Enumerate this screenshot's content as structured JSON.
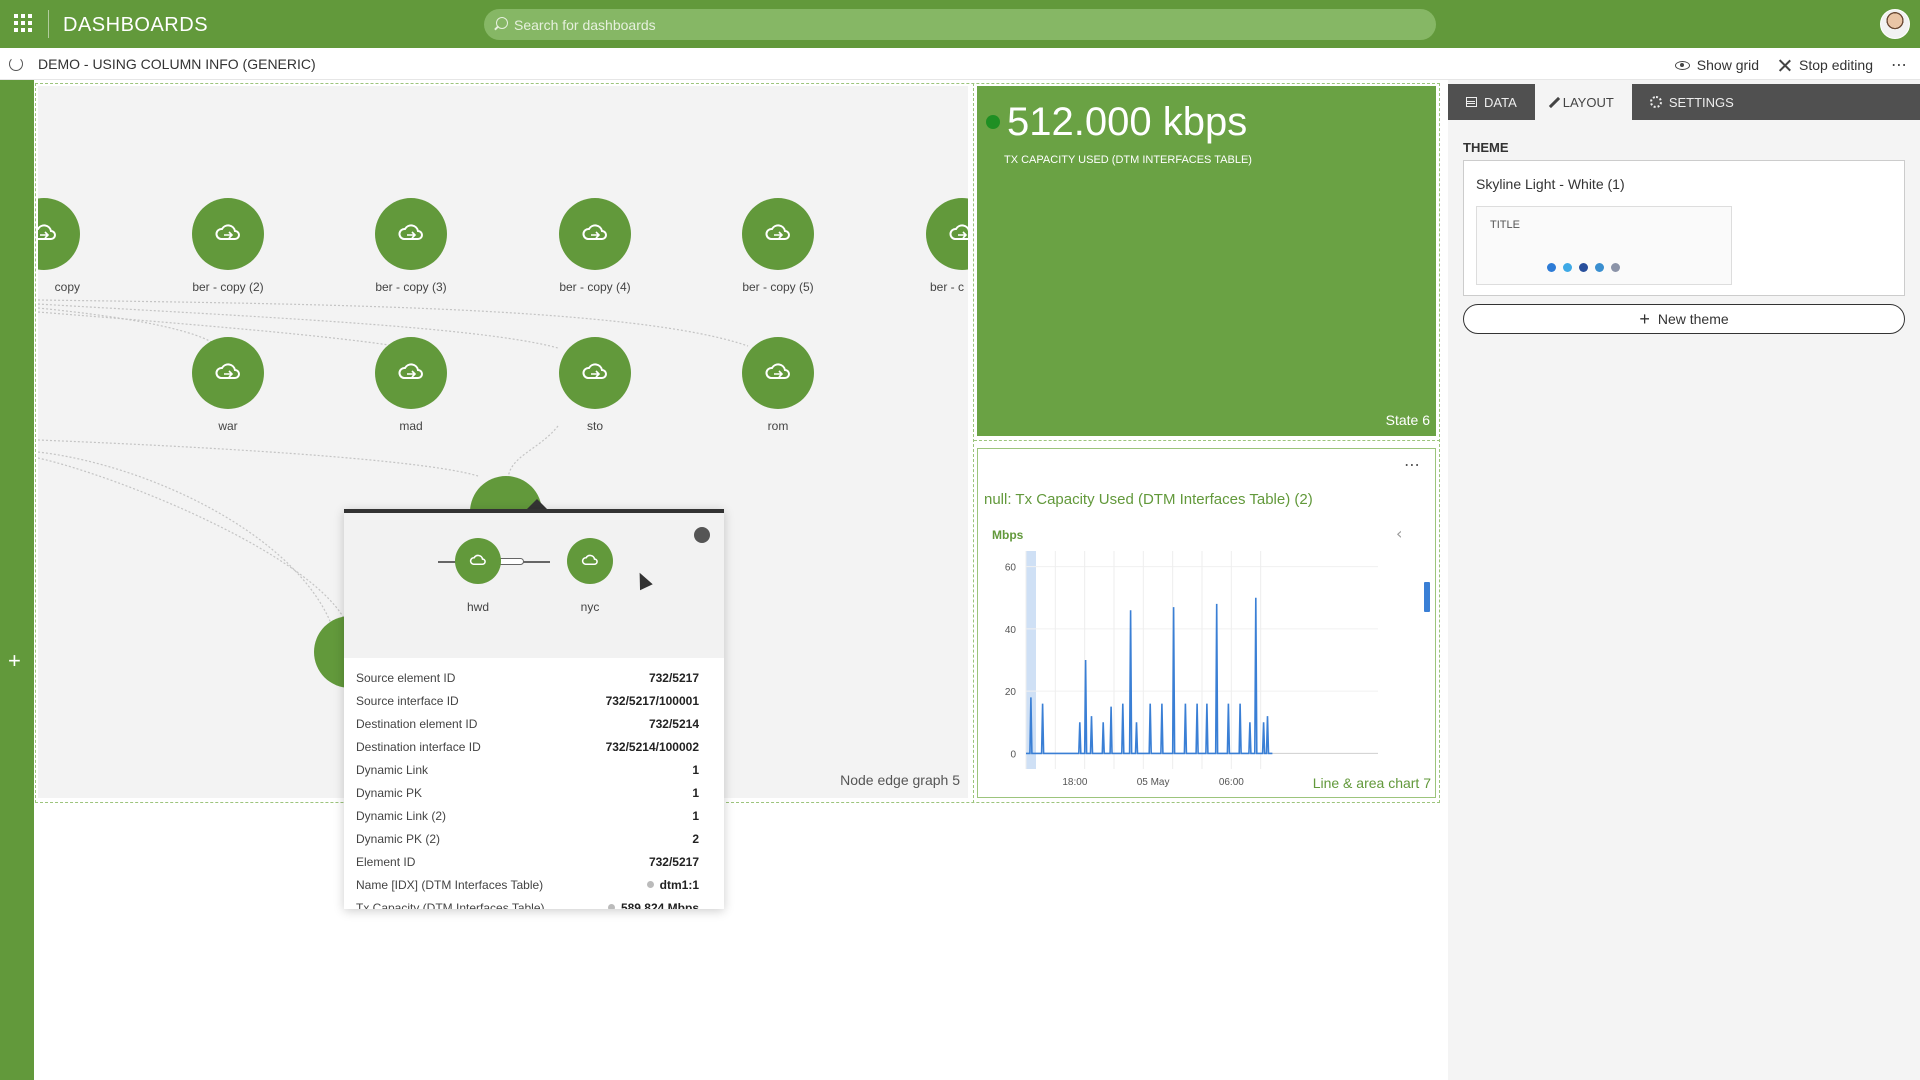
{
  "topbar": {
    "title": "DASHBOARDS",
    "search_placeholder": "Search for dashboards"
  },
  "subbar": {
    "dashboard_title": "DEMO - USING COLUMN INFO (GENERIC)",
    "show_grid": "Show grid",
    "stop_editing": "Stop editing"
  },
  "graph": {
    "panel_label": "Node edge graph 5",
    "nodes": {
      "copy": "copy",
      "ber_copy_2": "ber - copy (2)",
      "ber_copy_3": "ber - copy (3)",
      "ber_copy_4": "ber - copy (4)",
      "ber_copy_5": "ber - copy (5)",
      "ber_c": "ber - c",
      "war": "war",
      "mad": "mad",
      "sto": "sto",
      "rom": "rom"
    },
    "popup": {
      "source_node": "hwd",
      "dest_node": "nyc",
      "properties": [
        {
          "label": "Source element ID",
          "value": "732/5217"
        },
        {
          "label": "Source interface ID",
          "value": "732/5217/100001"
        },
        {
          "label": "Destination element ID",
          "value": "732/5214"
        },
        {
          "label": "Destination interface ID",
          "value": "732/5214/100002"
        },
        {
          "label": "Dynamic Link",
          "value": "1"
        },
        {
          "label": "Dynamic PK",
          "value": "1"
        },
        {
          "label": "Dynamic Link (2)",
          "value": "1"
        },
        {
          "label": "Dynamic PK (2)",
          "value": "2"
        },
        {
          "label": "Element ID",
          "value": "732/5217"
        },
        {
          "label": "Name [IDX] (DTM Interfaces Table)",
          "value": "dtm1:1"
        },
        {
          "label": "Tx Capacity (DTM Interfaces Table)",
          "value": "589.824 Mbps"
        }
      ]
    }
  },
  "state": {
    "value": "512.000 kbps",
    "subtitle": "TX CAPACITY USED (DTM INTERFACES TABLE)",
    "panel_label": "State 6",
    "dot_color": "#1f8f23"
  },
  "chart": {
    "title": "null: Tx Capacity Used (DTM Interfaces Table) (2)",
    "panel_label": "Line & area chart 7"
  },
  "chart_data": {
    "type": "line",
    "title": "null: Tx Capacity Used (DTM Interfaces Table) (2)",
    "ylabel": "Mbps",
    "xlabel": "",
    "ylim": [
      -5,
      65
    ],
    "yticks": [
      0,
      20,
      40,
      60
    ],
    "xticks": [
      "18:00",
      "05 May",
      "06:00"
    ],
    "x_range_hours": [
      0,
      18
    ],
    "xtick_hours": [
      2.5,
      6.5,
      10.5
    ],
    "series": [
      {
        "name": "Tx Capacity Used",
        "color": "#3a7fd5",
        "points": [
          [
            0,
            0
          ],
          [
            0.2,
            0
          ],
          [
            0.25,
            18
          ],
          [
            0.3,
            0
          ],
          [
            0.8,
            0
          ],
          [
            0.85,
            16
          ],
          [
            0.9,
            0
          ],
          [
            2.7,
            0
          ],
          [
            2.75,
            10
          ],
          [
            2.8,
            0
          ],
          [
            3.0,
            0
          ],
          [
            3.05,
            30
          ],
          [
            3.1,
            0
          ],
          [
            3.3,
            0
          ],
          [
            3.35,
            12
          ],
          [
            3.4,
            0
          ],
          [
            3.9,
            0
          ],
          [
            3.95,
            10
          ],
          [
            4.0,
            0
          ],
          [
            4.3,
            0
          ],
          [
            4.35,
            15
          ],
          [
            4.4,
            0
          ],
          [
            4.9,
            0
          ],
          [
            4.95,
            16
          ],
          [
            5.0,
            0
          ],
          [
            5.3,
            0
          ],
          [
            5.35,
            46
          ],
          [
            5.4,
            0
          ],
          [
            5.6,
            0
          ],
          [
            5.65,
            10
          ],
          [
            5.7,
            0
          ],
          [
            6.3,
            0
          ],
          [
            6.35,
            16
          ],
          [
            6.4,
            0
          ],
          [
            6.9,
            0
          ],
          [
            6.95,
            16
          ],
          [
            7.0,
            0
          ],
          [
            7.5,
            0
          ],
          [
            7.55,
            47
          ],
          [
            7.6,
            0
          ],
          [
            8.1,
            0
          ],
          [
            8.15,
            16
          ],
          [
            8.2,
            0
          ],
          [
            8.7,
            0
          ],
          [
            8.75,
            16
          ],
          [
            8.8,
            0
          ],
          [
            9.2,
            0
          ],
          [
            9.25,
            16
          ],
          [
            9.3,
            0
          ],
          [
            9.7,
            0
          ],
          [
            9.75,
            48
          ],
          [
            9.8,
            0
          ],
          [
            10.3,
            0
          ],
          [
            10.35,
            16
          ],
          [
            10.4,
            0
          ],
          [
            10.9,
            0
          ],
          [
            10.95,
            16
          ],
          [
            11.0,
            0
          ],
          [
            11.4,
            0
          ],
          [
            11.45,
            10
          ],
          [
            11.5,
            0
          ],
          [
            11.7,
            0
          ],
          [
            11.75,
            50
          ],
          [
            11.8,
            0
          ],
          [
            12.1,
            0
          ],
          [
            12.15,
            10
          ],
          [
            12.2,
            0
          ],
          [
            12.3,
            0
          ],
          [
            12.35,
            12
          ],
          [
            12.4,
            0
          ],
          [
            12.6,
            0
          ]
        ]
      }
    ]
  },
  "side_panel": {
    "tabs": [
      "DATA",
      "LAYOUT",
      "SETTINGS"
    ],
    "theme_heading": "THEME",
    "theme_name": "Skyline Light - White (1)",
    "preview_title": "TITLE",
    "new_theme": "New theme",
    "preview_dot_colors": [
      "#2d7bd6",
      "#3ea9e6",
      "#284f9c",
      "#3a8fd0",
      "#8b93a8"
    ]
  },
  "colors": {
    "brand": "#62993b",
    "state_bg": "#6aa244"
  }
}
